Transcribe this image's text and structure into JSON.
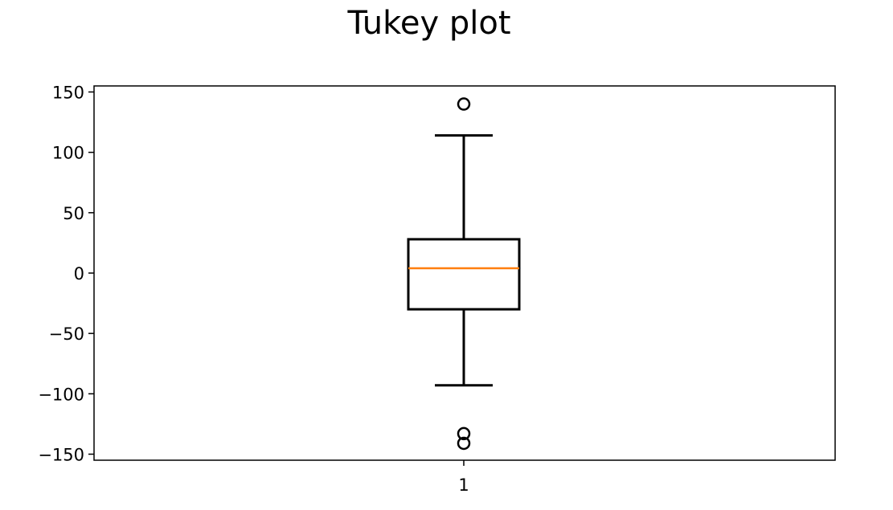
{
  "chart_data": {
    "type": "boxplot",
    "title": "Tukey plot",
    "xlabel": "",
    "ylabel": "",
    "categories": [
      "1"
    ],
    "ylim": [
      -155,
      155
    ],
    "yticks": [
      150,
      100,
      50,
      0,
      -50,
      -100,
      -150
    ],
    "ytick_labels": [
      "150",
      "100",
      "50",
      "0",
      "−50",
      "−100",
      "−150"
    ],
    "xtick_labels": [
      "1"
    ],
    "grid": false,
    "boxes": [
      {
        "category": "1",
        "q1": -30,
        "median": 4,
        "q3": 28,
        "whisker_low": -93,
        "whisker_high": 114,
        "outliers": [
          140,
          -133,
          -141
        ]
      }
    ],
    "colors": {
      "box": "#000000",
      "median": "#ff7f0e",
      "axes": "#000000",
      "background": "#ffffff"
    }
  }
}
